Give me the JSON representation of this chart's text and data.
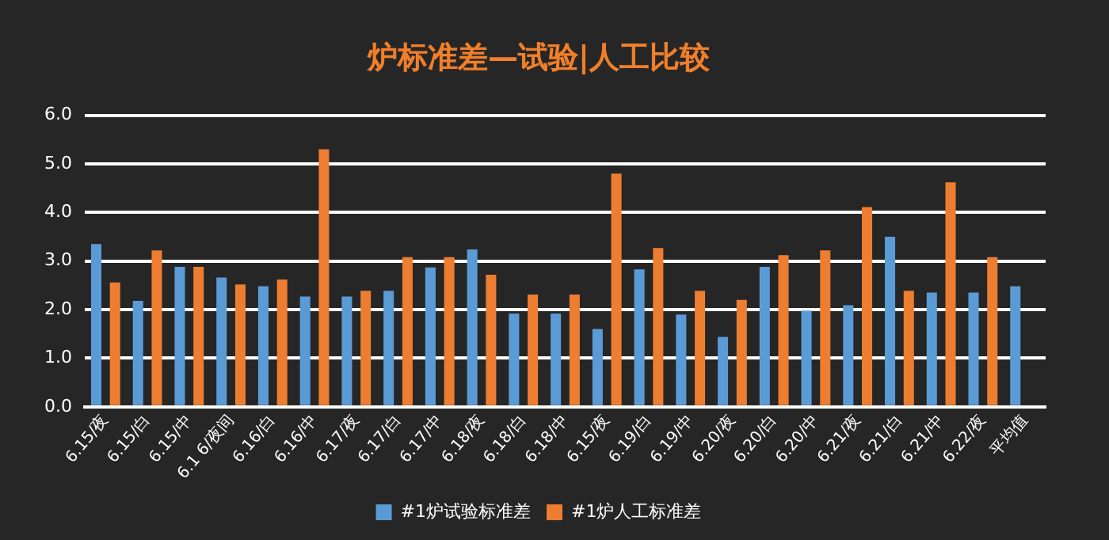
{
  "chart_data": {
    "type": "bar",
    "title": "炉标准差—试验|人工比较",
    "categories": [
      "6.15/夜",
      "6.15/白",
      "6.15/中",
      "6.1 6/夜间",
      "6.16/白",
      "6.16/中",
      "6.17/夜",
      "6.17/白",
      "6.17/中",
      "6.18/夜",
      "6.18/白",
      "6.18/中",
      "6.15/夜",
      "6.19/白",
      "6.19/中",
      "6.20/夜",
      "6.20/白",
      "6.20/中",
      "6.21/夜",
      "6.21/白",
      "6.21/中",
      "6.22/夜",
      "平均值"
    ],
    "series": [
      {
        "name": "#1炉试验标准差",
        "color": "#5b9bd5",
        "values": [
          3.35,
          2.18,
          2.88,
          2.66,
          2.48,
          2.27,
          2.27,
          2.39,
          2.87,
          3.24,
          1.92,
          1.92,
          1.6,
          2.83,
          1.9,
          1.44,
          2.88,
          1.98,
          2.09,
          3.5,
          2.35,
          2.35,
          2.48
        ]
      },
      {
        "name": "#1炉人工标准差",
        "color": "#ed7d31",
        "values": [
          2.56,
          3.22,
          2.88,
          2.52,
          2.62,
          5.3,
          2.39,
          3.08,
          3.08,
          2.72,
          2.31,
          2.31,
          4.8,
          3.27,
          2.39,
          2.2,
          3.12,
          3.22,
          4.11,
          2.39,
          4.62,
          3.08,
          null
        ]
      }
    ],
    "ylim": [
      0,
      6
    ],
    "yticks": [
      {
        "value": 0,
        "label": "0.0"
      },
      {
        "value": 1,
        "label": "1.0"
      },
      {
        "value": 2,
        "label": "2.0"
      },
      {
        "value": 3,
        "label": "3.0"
      },
      {
        "value": 4,
        "label": "4.0"
      },
      {
        "value": 5,
        "label": "5.0"
      },
      {
        "value": 6,
        "label": "6.0"
      }
    ],
    "grid": "y",
    "legend": "bottom"
  }
}
